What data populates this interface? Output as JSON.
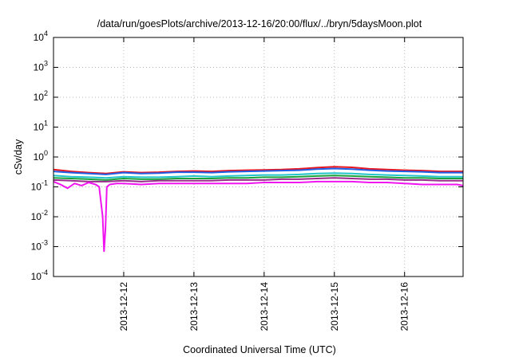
{
  "chart_data": {
    "type": "line",
    "title": "/data/run/goesPlots/archive/2013-12-16/20:00/flux/../bryn/5daysMoon.plot",
    "xlabel": "Coordinated Universal Time (UTC)",
    "ylabel": "cSv/day",
    "yscale": "log",
    "ylim": [
      0.0001,
      10000
    ],
    "yticks": [
      {
        "value": 0.0001,
        "base": "10",
        "exp": "-4"
      },
      {
        "value": 0.001,
        "base": "10",
        "exp": "-3"
      },
      {
        "value": 0.01,
        "base": "10",
        "exp": "-2"
      },
      {
        "value": 0.1,
        "base": "10",
        "exp": "-1"
      },
      {
        "value": 1,
        "base": "10",
        "exp": "0"
      },
      {
        "value": 10,
        "base": "10",
        "exp": "1"
      },
      {
        "value": 100,
        "base": "10",
        "exp": "2"
      },
      {
        "value": 1000,
        "base": "10",
        "exp": "3"
      },
      {
        "value": 10000,
        "base": "10",
        "exp": "4"
      }
    ],
    "xlim": [
      "2013-12-11T00:00",
      "2013-12-16T20:00"
    ],
    "xticks": [
      "2013-12-12",
      "2013-12-13",
      "2013-12-14",
      "2013-12-15",
      "2013-12-16"
    ],
    "grid": true,
    "series": [
      {
        "color": "#e8141e",
        "x_days": [
          0,
          0.25,
          0.5,
          0.75,
          1.0,
          1.25,
          1.5,
          1.75,
          2.0,
          2.25,
          2.5,
          2.75,
          3.0,
          3.25,
          3.5,
          3.75,
          4.0,
          4.25,
          4.5,
          4.75,
          5.0,
          5.25,
          5.5,
          5.75,
          5.83
        ],
        "values": [
          0.38,
          0.33,
          0.3,
          0.28,
          0.32,
          0.3,
          0.31,
          0.33,
          0.34,
          0.33,
          0.35,
          0.36,
          0.37,
          0.38,
          0.4,
          0.44,
          0.47,
          0.45,
          0.4,
          0.38,
          0.36,
          0.35,
          0.33,
          0.33,
          0.33
        ]
      },
      {
        "color": "#1f5ee6",
        "x_days": [
          0,
          0.25,
          0.5,
          0.75,
          1.0,
          1.25,
          1.5,
          1.75,
          2.0,
          2.25,
          2.5,
          2.75,
          3.0,
          3.25,
          3.5,
          3.75,
          4.0,
          4.25,
          4.5,
          4.75,
          5.0,
          5.25,
          5.5,
          5.75,
          5.83
        ],
        "values": [
          0.33,
          0.3,
          0.28,
          0.26,
          0.3,
          0.28,
          0.29,
          0.31,
          0.31,
          0.3,
          0.32,
          0.33,
          0.34,
          0.35,
          0.36,
          0.39,
          0.41,
          0.39,
          0.36,
          0.34,
          0.33,
          0.32,
          0.3,
          0.3,
          0.3
        ]
      },
      {
        "color": "#22c4cc",
        "x_days": [
          0,
          0.25,
          0.5,
          0.75,
          1.0,
          1.25,
          1.5,
          1.75,
          2.0,
          2.25,
          2.5,
          2.75,
          3.0,
          3.25,
          3.5,
          3.75,
          4.0,
          4.25,
          4.5,
          4.75,
          5.0,
          5.25,
          5.5,
          5.75,
          5.83
        ],
        "values": [
          0.24,
          0.22,
          0.21,
          0.2,
          0.22,
          0.21,
          0.21,
          0.22,
          0.23,
          0.22,
          0.23,
          0.24,
          0.25,
          0.25,
          0.26,
          0.28,
          0.29,
          0.28,
          0.26,
          0.25,
          0.24,
          0.23,
          0.22,
          0.22,
          0.22
        ]
      },
      {
        "color": "#1aa33c",
        "x_days": [
          0,
          0.25,
          0.5,
          0.75,
          1.0,
          1.25,
          1.5,
          1.75,
          2.0,
          2.25,
          2.5,
          2.75,
          3.0,
          3.25,
          3.5,
          3.75,
          4.0,
          4.25,
          4.5,
          4.75,
          5.0,
          5.25,
          5.5,
          5.75,
          5.83
        ],
        "values": [
          0.2,
          0.19,
          0.18,
          0.17,
          0.19,
          0.18,
          0.18,
          0.19,
          0.19,
          0.19,
          0.2,
          0.2,
          0.21,
          0.21,
          0.22,
          0.23,
          0.24,
          0.23,
          0.22,
          0.21,
          0.2,
          0.2,
          0.19,
          0.19,
          0.19
        ]
      },
      {
        "color": "#9a2a8c",
        "x_days": [
          0,
          0.25,
          0.5,
          0.75,
          1.0,
          1.25,
          1.5,
          1.75,
          2.0,
          2.25,
          2.5,
          2.75,
          3.0,
          3.25,
          3.5,
          3.75,
          4.0,
          4.25,
          4.5,
          4.75,
          5.0,
          5.25,
          5.5,
          5.75,
          5.83
        ],
        "values": [
          0.17,
          0.16,
          0.15,
          0.15,
          0.16,
          0.15,
          0.16,
          0.16,
          0.16,
          0.16,
          0.17,
          0.17,
          0.17,
          0.18,
          0.18,
          0.19,
          0.2,
          0.19,
          0.18,
          0.18,
          0.17,
          0.17,
          0.16,
          0.16,
          0.16
        ]
      },
      {
        "color": "#f014f0",
        "x_days": [
          0,
          0.1,
          0.2,
          0.3,
          0.4,
          0.5,
          0.6,
          0.65,
          0.7,
          0.72,
          0.74,
          0.76,
          0.8,
          0.9,
          1.0,
          1.25,
          1.5,
          1.75,
          2.0,
          2.25,
          2.5,
          2.75,
          3.0,
          3.25,
          3.5,
          3.75,
          4.0,
          4.25,
          4.5,
          4.75,
          5.0,
          5.25,
          5.5,
          5.75,
          5.83
        ],
        "values": [
          0.15,
          0.12,
          0.09,
          0.13,
          0.11,
          0.14,
          0.12,
          0.1,
          0.01,
          0.0007,
          0.004,
          0.1,
          0.12,
          0.13,
          0.13,
          0.12,
          0.13,
          0.13,
          0.13,
          0.13,
          0.13,
          0.13,
          0.14,
          0.14,
          0.14,
          0.15,
          0.15,
          0.15,
          0.14,
          0.14,
          0.13,
          0.12,
          0.12,
          0.12,
          0.11
        ]
      }
    ]
  }
}
